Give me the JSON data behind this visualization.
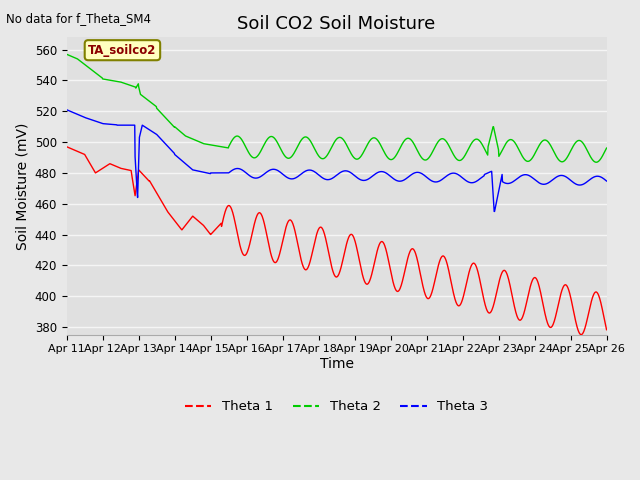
{
  "title": "Soil CO2 Soil Moisture",
  "ylabel": "Soil Moisture (mV)",
  "xlabel": "Time",
  "top_left_note": "No data for f_Theta_SM4",
  "annotation_label": "TA_soilco2",
  "ylim": [
    375,
    568
  ],
  "yticks": [
    380,
    400,
    420,
    440,
    460,
    480,
    500,
    520,
    540,
    560
  ],
  "xtick_labels": [
    "Apr 11",
    "Apr 12",
    "Apr 13",
    "Apr 14",
    "Apr 15",
    "Apr 16",
    "Apr 17",
    "Apr 18",
    "Apr 19",
    "Apr 20",
    "Apr 21",
    "Apr 22",
    "Apr 23",
    "Apr 24",
    "Apr 25",
    "Apr 26"
  ],
  "colors": {
    "theta1": "#ff0000",
    "theta2": "#00cc00",
    "theta3": "#0000ff"
  },
  "legend_labels": [
    "Theta 1",
    "Theta 2",
    "Theta 3"
  ],
  "bg_color": "#e8e8e8",
  "plot_bg_color": "#e0e0e0",
  "grid_color": "#f5f5f5",
  "title_fontsize": 13,
  "label_fontsize": 10,
  "tick_fontsize": 8.5
}
